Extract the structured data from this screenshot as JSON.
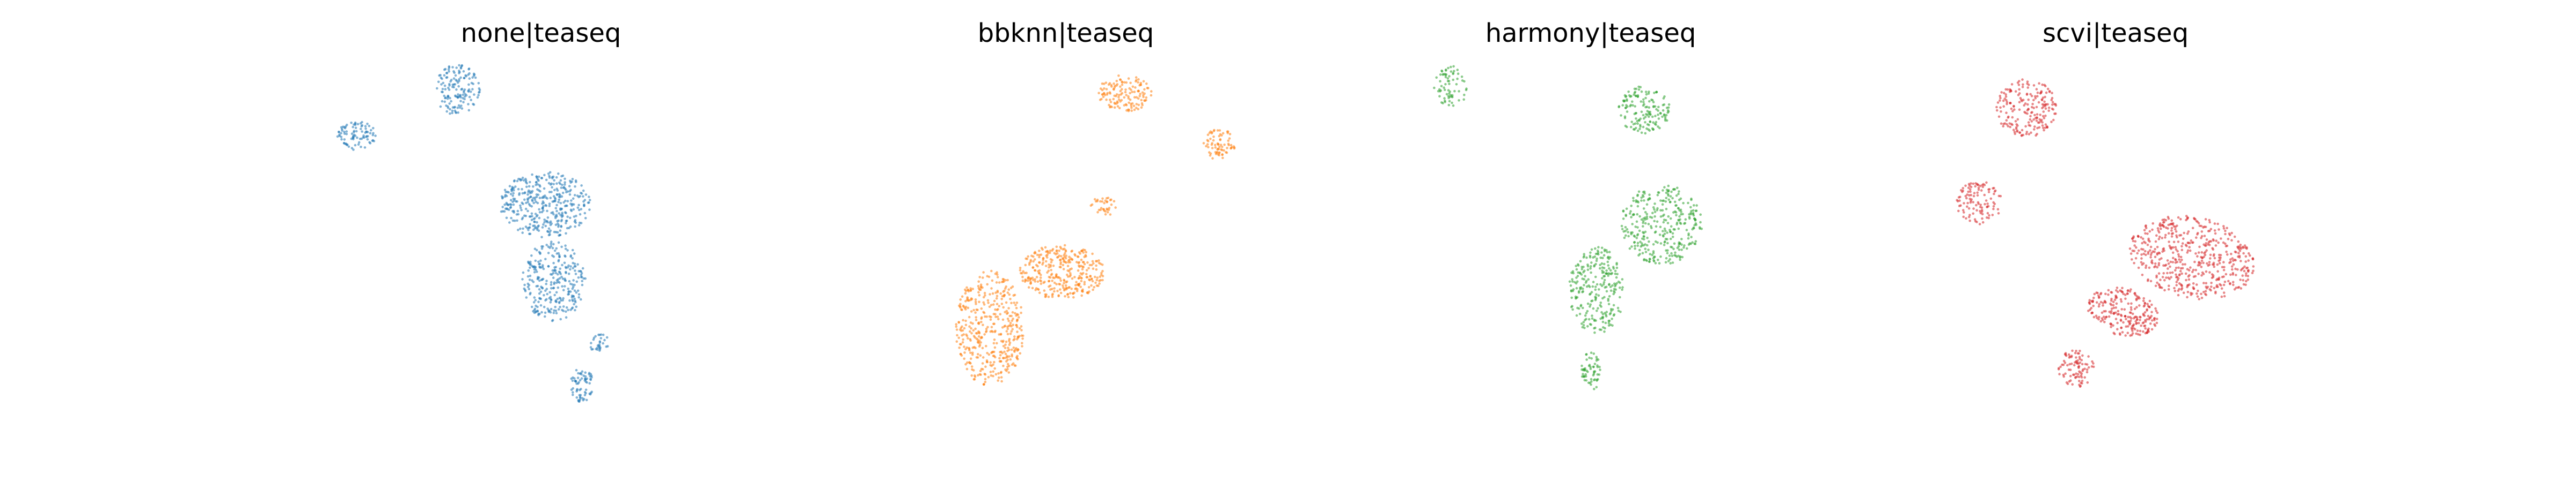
{
  "figure": {
    "background": "#ffffff",
    "axes_visible": false
  },
  "chart_data": [
    {
      "type": "scatter",
      "title": "none|teaseq",
      "color": "#1f77b4",
      "xlim": [
        0,
        20
      ],
      "ylim": [
        0,
        20
      ],
      "xlabel": "",
      "ylabel": "",
      "clusters": [
        {
          "cx": 1.6,
          "cy": 16.1,
          "rx": 0.9,
          "ry": 0.8,
          "n": 90,
          "angle": 0
        },
        {
          "cx": 6.3,
          "cy": 18.6,
          "rx": 1.05,
          "ry": 1.4,
          "n": 150,
          "angle": 0
        },
        {
          "cx": 10.4,
          "cy": 12.3,
          "rx": 2.1,
          "ry": 1.8,
          "n": 390,
          "angle": 0
        },
        {
          "cx": 10.8,
          "cy": 8.1,
          "rx": 1.5,
          "ry": 2.2,
          "n": 290,
          "angle": 0
        },
        {
          "cx": 12.9,
          "cy": 4.7,
          "rx": 0.5,
          "ry": 0.5,
          "n": 30,
          "angle": 0
        },
        {
          "cx": 12.1,
          "cy": 2.4,
          "rx": 0.55,
          "ry": 0.95,
          "n": 70,
          "angle": 0
        }
      ]
    },
    {
      "type": "scatter",
      "title": "bbknn|teaseq",
      "color": "#ff7f0e",
      "xlim": [
        0,
        20
      ],
      "ylim": [
        0,
        20
      ],
      "xlabel": "",
      "ylabel": "",
      "clusters": [
        {
          "cx": 12.9,
          "cy": 18.4,
          "rx": 1.25,
          "ry": 1.0,
          "n": 140,
          "angle": 0
        },
        {
          "cx": 17.3,
          "cy": 15.6,
          "rx": 0.75,
          "ry": 0.85,
          "n": 75,
          "angle": 0
        },
        {
          "cx": 11.9,
          "cy": 12.2,
          "rx": 0.6,
          "ry": 0.55,
          "n": 35,
          "angle": 0
        },
        {
          "cx": 10.0,
          "cy": 8.6,
          "rx": 2.0,
          "ry": 1.5,
          "n": 340,
          "angle": 0
        },
        {
          "cx": 6.6,
          "cy": 5.5,
          "rx": 1.6,
          "ry": 3.2,
          "n": 430,
          "angle": 0
        }
      ]
    },
    {
      "type": "scatter",
      "title": "harmony|teaseq",
      "color": "#2ca02c",
      "xlim": [
        0,
        20
      ],
      "ylim": [
        0,
        20
      ],
      "xlabel": "",
      "ylabel": "",
      "clusters": [
        {
          "cx": 3.6,
          "cy": 18.8,
          "rx": 0.8,
          "ry": 1.1,
          "n": 70,
          "angle": 0
        },
        {
          "cx": 12.6,
          "cy": 17.5,
          "rx": 1.2,
          "ry": 1.3,
          "n": 150,
          "angle": 0
        },
        {
          "cx": 13.4,
          "cy": 11.2,
          "rx": 1.9,
          "ry": 2.2,
          "n": 330,
          "angle": 0
        },
        {
          "cx": 10.4,
          "cy": 7.6,
          "rx": 1.3,
          "ry": 2.4,
          "n": 260,
          "angle": 0
        },
        {
          "cx": 10.1,
          "cy": 3.1,
          "rx": 0.45,
          "ry": 1.1,
          "n": 60,
          "angle": 0
        }
      ]
    },
    {
      "type": "scatter",
      "title": "scvi|teaseq",
      "color": "#d62728",
      "xlim": [
        0,
        20
      ],
      "ylim": [
        0,
        20
      ],
      "xlabel": "",
      "ylabel": "",
      "clusters": [
        {
          "cx": 5.9,
          "cy": 17.6,
          "rx": 1.4,
          "ry": 1.6,
          "n": 200,
          "angle": 0
        },
        {
          "cx": 3.7,
          "cy": 12.4,
          "rx": 1.05,
          "ry": 1.2,
          "n": 110,
          "angle": 0
        },
        {
          "cx": 13.6,
          "cy": 9.4,
          "rx": 3.0,
          "ry": 2.2,
          "n": 520,
          "angle": -0.35
        },
        {
          "cx": 10.4,
          "cy": 6.4,
          "rx": 1.7,
          "ry": 1.3,
          "n": 240,
          "angle": -0.4
        },
        {
          "cx": 8.2,
          "cy": 3.3,
          "rx": 0.85,
          "ry": 1.05,
          "n": 90,
          "angle": 0
        }
      ]
    }
  ]
}
